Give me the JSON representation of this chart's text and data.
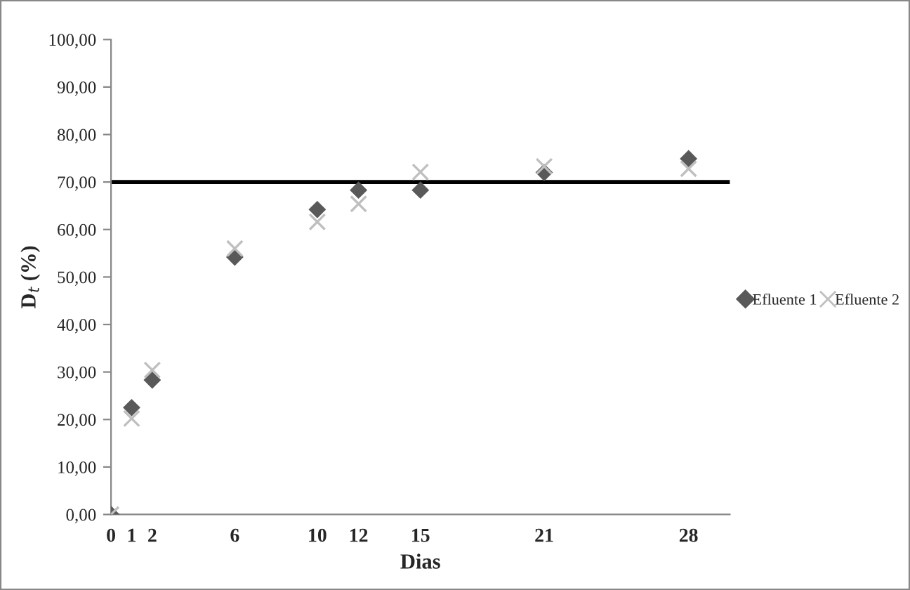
{
  "chart_data": {
    "type": "scatter",
    "xlabel": "Dias",
    "ylabel": "D$_{t}$ (%)",
    "series": [
      {
        "name": "Efluente 1",
        "color": "#595959",
        "marker": "diamond",
        "x": [
          0,
          1,
          2,
          6,
          10,
          12,
          15,
          21,
          28
        ],
        "values": [
          0,
          22.5,
          28.3,
          54.2,
          64.2,
          68.3,
          68.3,
          72.0,
          74.9
        ]
      },
      {
        "name": "Efluente 2",
        "color": "#bfbfbf",
        "marker": "cross",
        "x": [
          0,
          1,
          2,
          6,
          10,
          12,
          15,
          21,
          28
        ],
        "values": [
          0,
          20.2,
          30.4,
          56.0,
          61.6,
          65.4,
          72.1,
          73.3,
          72.8
        ]
      }
    ],
    "xlim": [
      0,
      30
    ],
    "xticks": [
      0,
      1,
      2,
      6,
      10,
      12,
      15,
      21,
      28
    ],
    "ylim": [
      0,
      100
    ],
    "yticks": [
      {
        "value": 0,
        "label": "0,00"
      },
      {
        "value": 10,
        "label": "10,00"
      },
      {
        "value": 20,
        "label": "20,00"
      },
      {
        "value": 30,
        "label": "30,00"
      },
      {
        "value": 40,
        "label": "40,00"
      },
      {
        "value": 50,
        "label": "50,00"
      },
      {
        "value": 60,
        "label": "60,00"
      },
      {
        "value": 70,
        "label": "70,00"
      },
      {
        "value": 80,
        "label": "80,00"
      },
      {
        "value": 90,
        "label": "90,00"
      },
      {
        "value": 100,
        "label": "100,00"
      }
    ],
    "ref_lines": [
      {
        "axis": "y",
        "value": 70,
        "color": "#000000"
      }
    ],
    "grid": false,
    "legend": "right"
  }
}
